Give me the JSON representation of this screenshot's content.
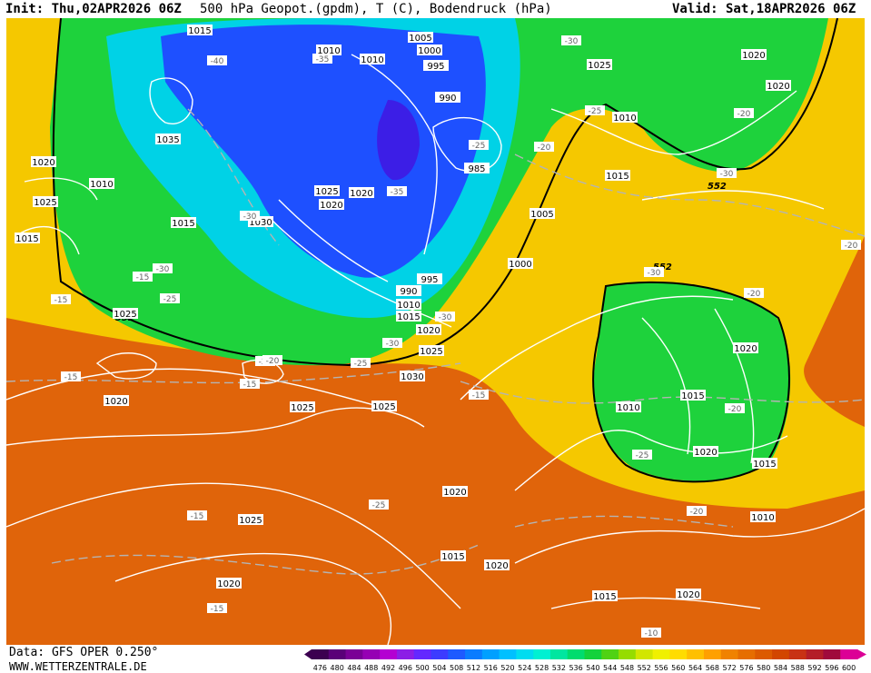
{
  "header": {
    "init": "Init: Thu,02APR2026 06Z",
    "title": "500 hPa Geopot.(gpdm), T (C), Bodendruck (hPa)",
    "valid": "Valid: Sat,18APR2026 06Z"
  },
  "footer": {
    "data_source": "Data: GFS OPER 0.250°",
    "website": "WWW.WETTERZENTRALE.DE"
  },
  "legend": {
    "values": [
      "476",
      "480",
      "484",
      "488",
      "492",
      "496",
      "500",
      "504",
      "508",
      "512",
      "516",
      "520",
      "524",
      "528",
      "532",
      "536",
      "540",
      "544",
      "548",
      "552",
      "556",
      "560",
      "564",
      "568",
      "572",
      "576",
      "580",
      "584",
      "588",
      "592",
      "596",
      "600"
    ],
    "colors": [
      "#3c0050",
      "#5a0078",
      "#7a0096",
      "#9600b4",
      "#b400d2",
      "#8c1ee6",
      "#6428ff",
      "#3c3cff",
      "#1e5aff",
      "#0a7cff",
      "#00a0ff",
      "#00c0ff",
      "#00dcf0",
      "#00f0d2",
      "#00e6a0",
      "#00dc6e",
      "#14d23c",
      "#50d214",
      "#96dc00",
      "#d2e600",
      "#f0f000",
      "#ffdc00",
      "#ffc000",
      "#ffa000",
      "#f08200",
      "#e66e00",
      "#dc5a00",
      "#d24600",
      "#c83214",
      "#b41e28",
      "#a00a3c",
      "#dc0096"
    ]
  },
  "map": {
    "background_colors": {
      "ocean_south": "#e0640a",
      "warm_band": "#f08c00",
      "yellow_band": "#f5d200",
      "green_zone": "#1ed23c",
      "cyan_zone": "#00d2e6",
      "blue_core": "#1e50ff",
      "deep_core": "#3c1ee6"
    },
    "geopotential_labels": [
      "552",
      "552",
      "552",
      "552"
    ],
    "pressure_labels": [
      "1015",
      "1010",
      "1010",
      "1005",
      "1000",
      "995",
      "990",
      "985",
      "1025",
      "1020",
      "1020",
      "1020",
      "1025",
      "1015",
      "1010",
      "1035",
      "1030",
      "1025",
      "1020",
      "1020",
      "1015",
      "1010",
      "1005",
      "1000",
      "995",
      "990",
      "1010",
      "1015",
      "1020",
      "1025",
      "1030",
      "1025",
      "1025",
      "1020",
      "1025",
      "1020",
      "1015",
      "1020",
      "1015",
      "1020",
      "1010",
      "1020",
      "1015",
      "1010",
      "1020",
      "1015",
      "1025",
      "1020",
      "1015"
    ],
    "temperature_labels": [
      "-40",
      "-35",
      "-30",
      "-25",
      "-20",
      "-30",
      "-25",
      "-35",
      "-20",
      "-30",
      "-25",
      "-20",
      "-30",
      "-30",
      "-25",
      "-30",
      "-20",
      "-15",
      "-20",
      "-15",
      "-15",
      "-30",
      "-20",
      "-25",
      "-20",
      "-25",
      "-15",
      "-15",
      "-15",
      "-20",
      "-15",
      "-10",
      "-10",
      "-15"
    ]
  }
}
